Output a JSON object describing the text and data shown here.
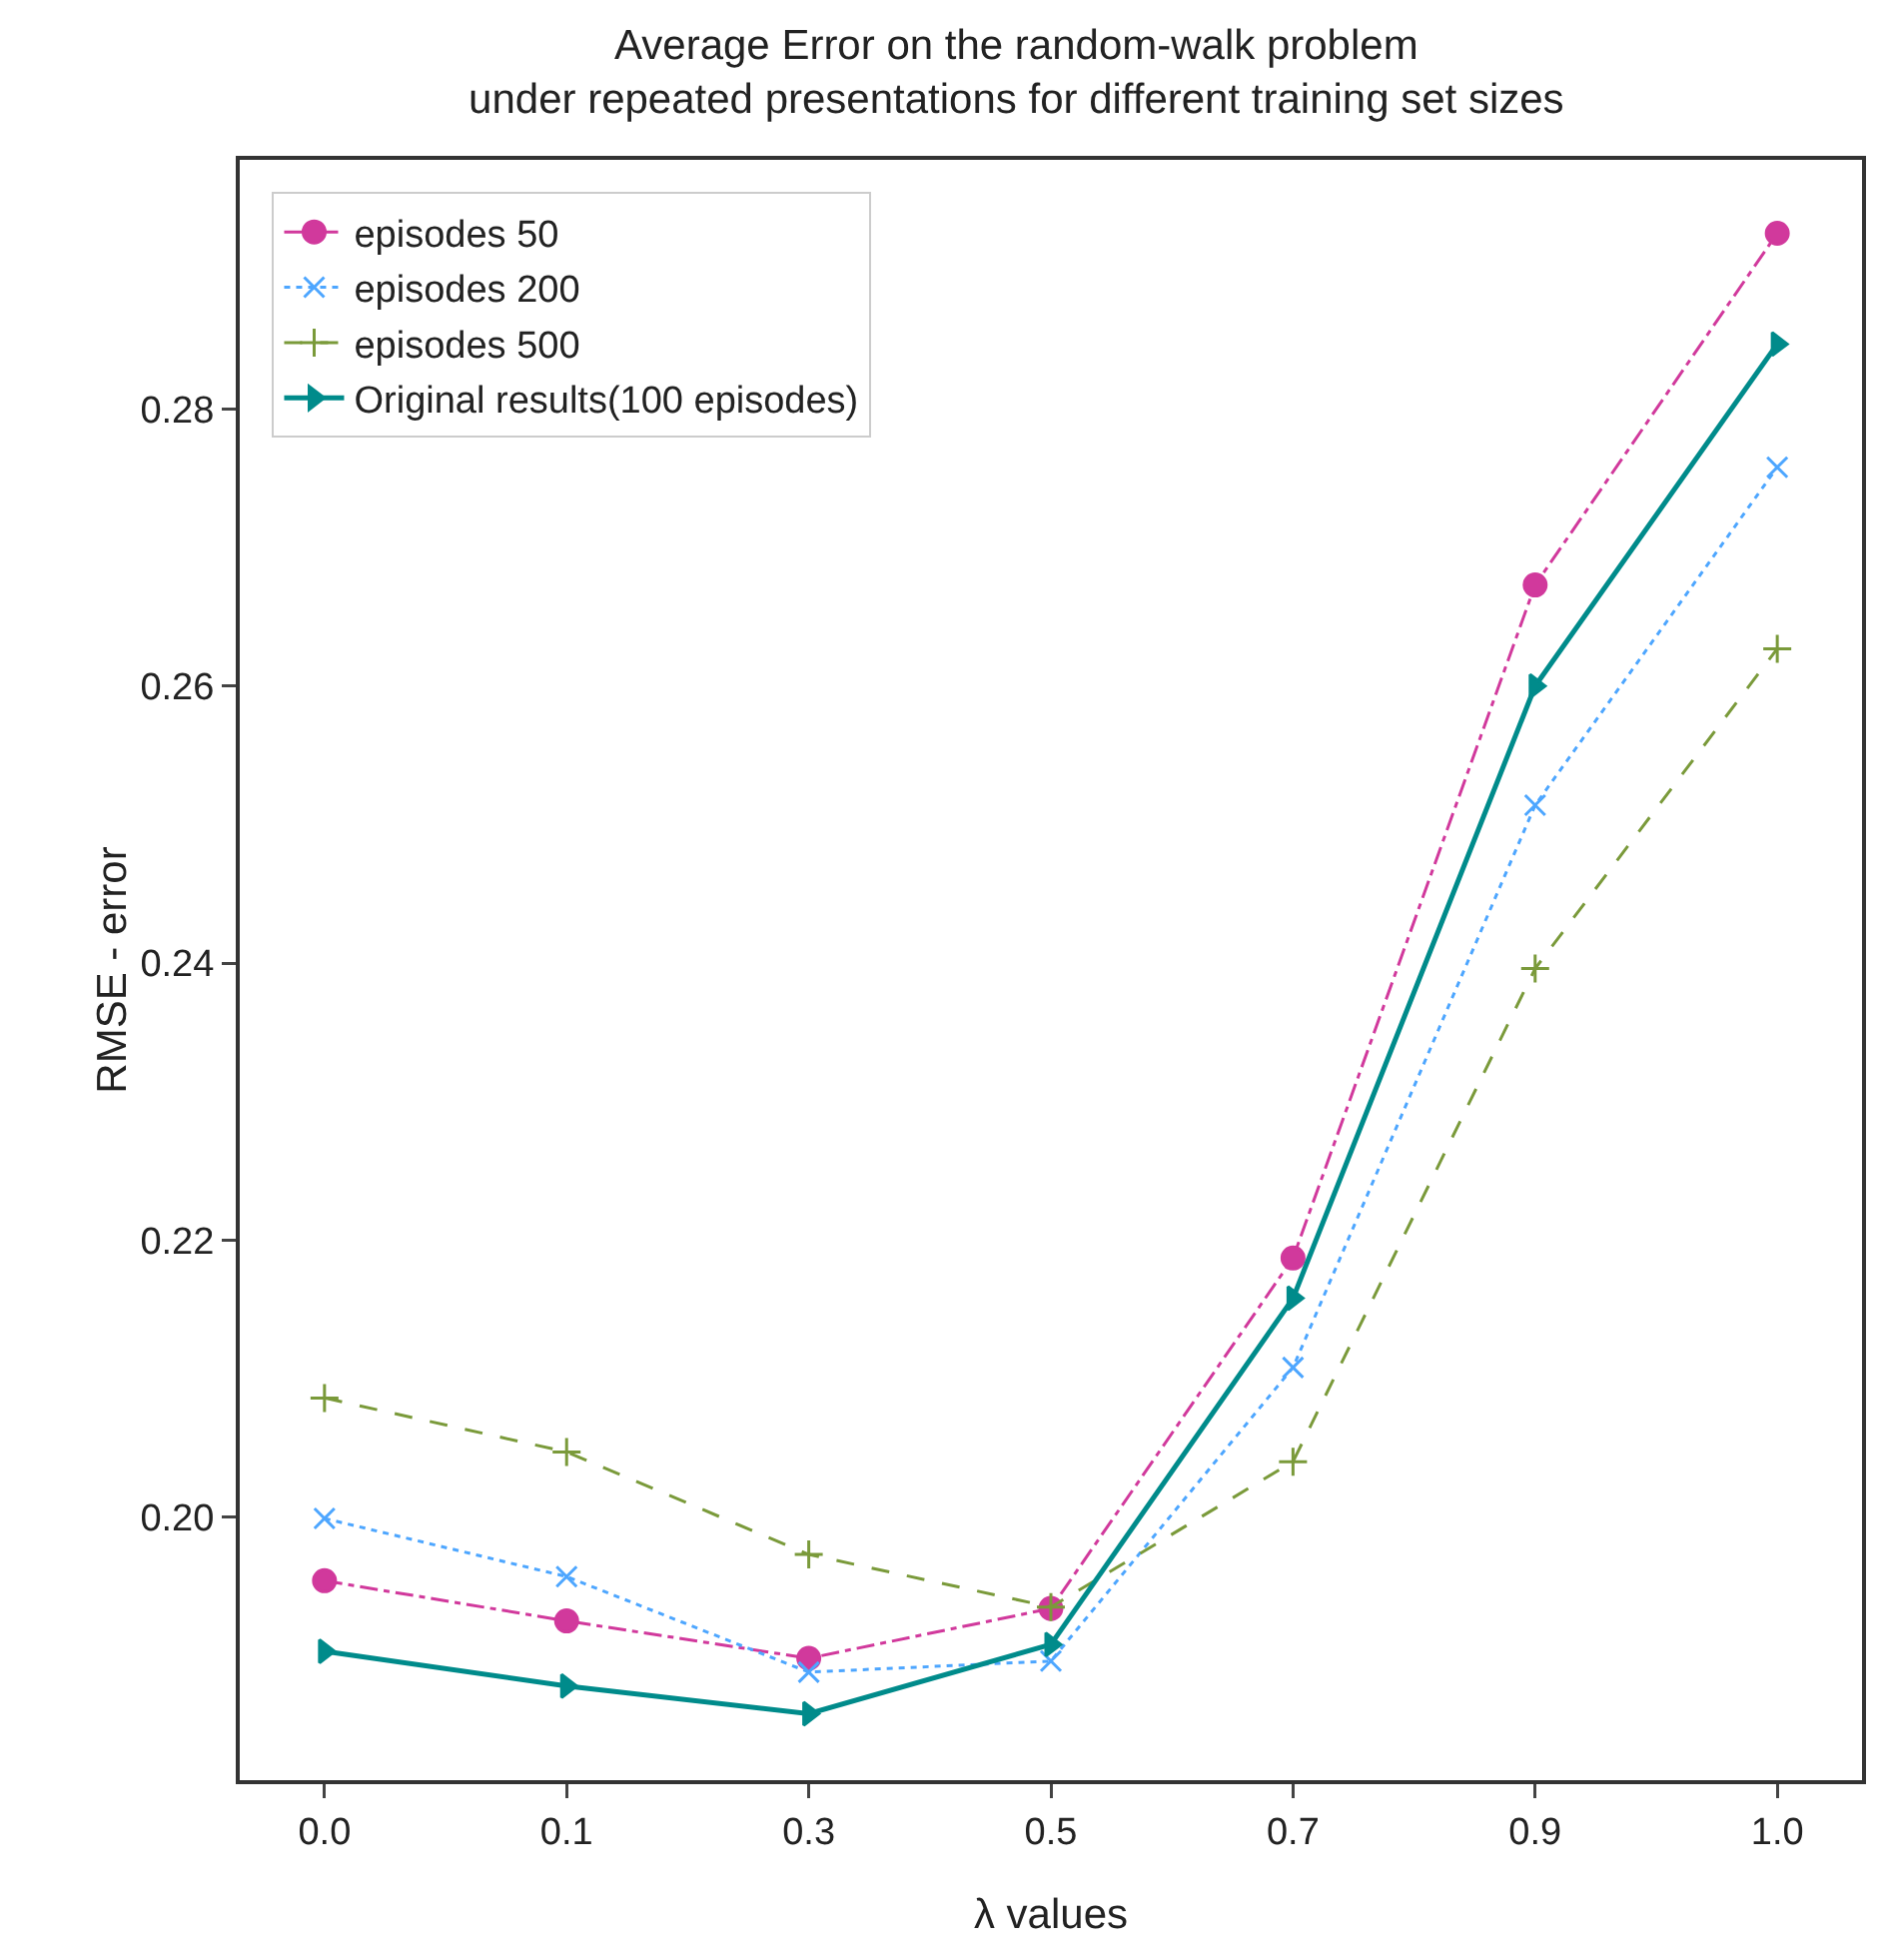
{
  "chart_data": {
    "type": "line",
    "title": "Average Error on the random-walk problem\nunder repeated presentations for different training set sizes",
    "xlabel": "λ values",
    "ylabel": "RMSE - error",
    "categories": [
      "0.0",
      "0.1",
      "0.3",
      "0.5",
      "0.7",
      "0.9",
      "1.0"
    ],
    "series": [
      {
        "name": "episodes 50",
        "color": "#d1399c",
        "marker": "circle",
        "line_style": "dashdot",
        "values": [
          0.1954,
          0.1925,
          0.1898,
          0.1934,
          0.2187,
          0.2673,
          0.2927
        ]
      },
      {
        "name": "episodes 200",
        "color": "#4da6ff",
        "marker": "x",
        "line_style": "dotted",
        "values": [
          0.1999,
          0.1957,
          0.1888,
          0.1896,
          0.2108,
          0.2514,
          0.2758
        ]
      },
      {
        "name": "episodes 500",
        "color": "#7a9a3a",
        "marker": "cross",
        "line_style": "dashed",
        "values": [
          0.2086,
          0.2047,
          0.1973,
          0.1935,
          0.204,
          0.2396,
          0.2627
        ]
      },
      {
        "name": "Original results(100 episodes)",
        "color": "#008b8b",
        "marker": "triangle",
        "line_style": "solid",
        "values": [
          0.1903,
          0.1878,
          0.1858,
          0.1908,
          0.2158,
          0.26,
          0.2847
        ]
      }
    ],
    "ylim": [
      0.181,
      0.298
    ],
    "yticks": [
      {
        "value": 0.2,
        "label": "0.20"
      },
      {
        "value": 0.22,
        "label": "0.22"
      },
      {
        "value": 0.24,
        "label": "0.24"
      },
      {
        "value": 0.26,
        "label": "0.26"
      },
      {
        "value": 0.28,
        "label": "0.28"
      }
    ],
    "grid": false,
    "legend": "top left"
  }
}
